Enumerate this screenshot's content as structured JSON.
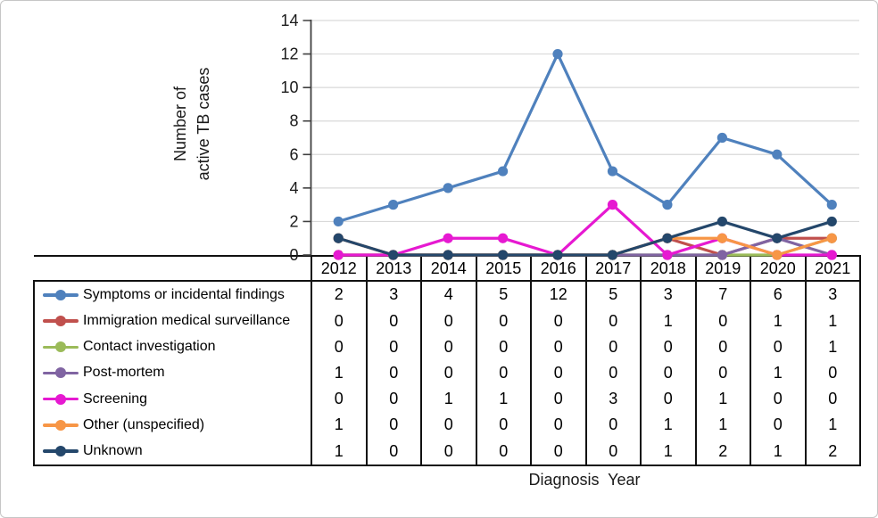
{
  "chart_data": {
    "type": "line",
    "title": "",
    "xlabel": "Diagnosis  Year",
    "ylabel": "Number of\nactive TB cases",
    "categories": [
      "2012",
      "2013",
      "2014",
      "2015",
      "2016",
      "2017",
      "2018",
      "2019",
      "2020",
      "2021"
    ],
    "ylim": [
      0,
      14
    ],
    "yticks": [
      0,
      2,
      4,
      6,
      8,
      10,
      12,
      14
    ],
    "grid": "horizontal",
    "legend_position": "data-table-left-column",
    "series": [
      {
        "name": "Symptoms or incidental findings",
        "color": "#4f81bd",
        "values": [
          2,
          3,
          4,
          5,
          12,
          5,
          3,
          7,
          6,
          3
        ]
      },
      {
        "name": "Immigration medical surveillance",
        "color": "#c0504d",
        "values": [
          0,
          0,
          0,
          0,
          0,
          0,
          1,
          0,
          1,
          1
        ]
      },
      {
        "name": "Contact investigation",
        "color": "#9bbb59",
        "values": [
          0,
          0,
          0,
          0,
          0,
          0,
          0,
          0,
          0,
          1
        ]
      },
      {
        "name": "Post-mortem",
        "color": "#8064a2",
        "values": [
          1,
          0,
          0,
          0,
          0,
          0,
          0,
          0,
          1,
          0
        ]
      },
      {
        "name": "Screening",
        "color": "#e619d1",
        "values": [
          0,
          0,
          1,
          1,
          0,
          3,
          0,
          1,
          0,
          0
        ]
      },
      {
        "name": "Other (unspecified)",
        "color": "#f79646",
        "values": [
          1,
          0,
          0,
          0,
          0,
          0,
          1,
          1,
          0,
          1
        ]
      },
      {
        "name": "Unknown",
        "color": "#24476b",
        "values": [
          1,
          0,
          0,
          0,
          0,
          0,
          1,
          2,
          1,
          2
        ]
      }
    ],
    "colors": {
      "axis": "#404040",
      "gridline": "#d9d9d9",
      "table_border": "#111111",
      "tick_label": "#1a1a1a"
    }
  }
}
